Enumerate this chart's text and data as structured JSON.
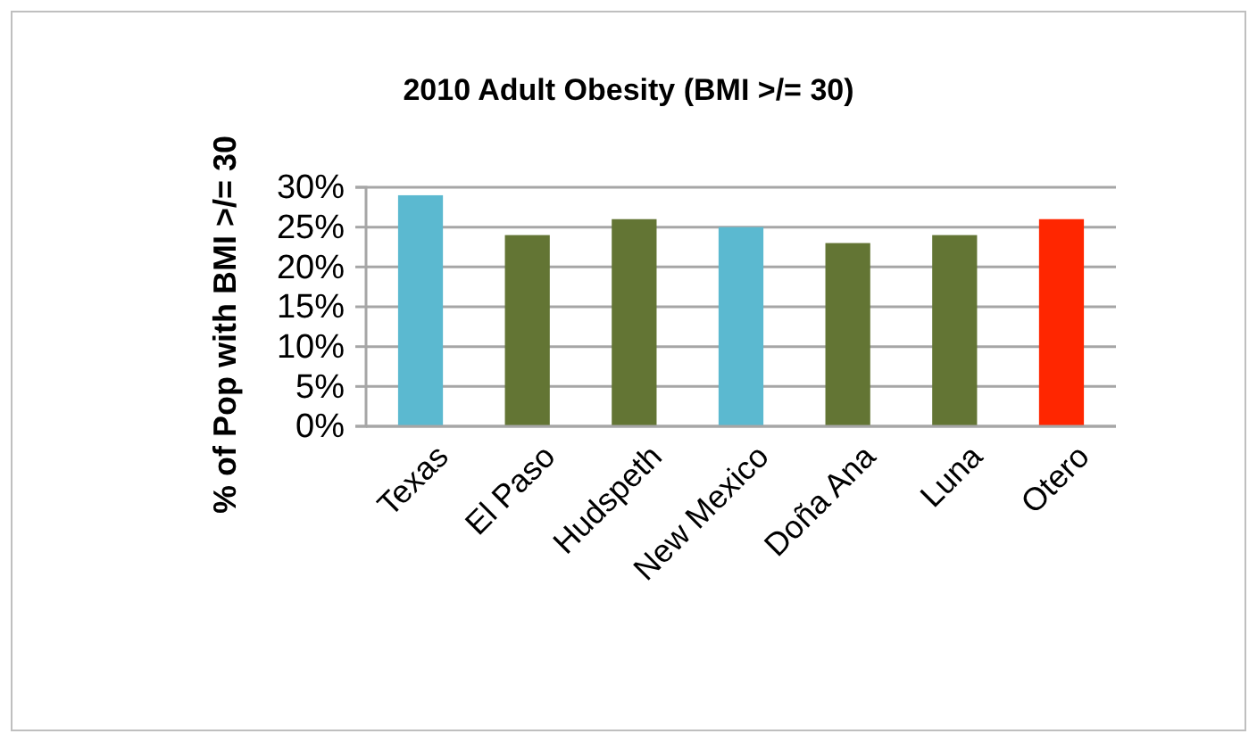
{
  "chart_data": {
    "type": "bar",
    "title": "2010 Adult Obesity (BMI >/= 30)",
    "ylabel": "% of Pop with BMI >/= 30",
    "categories": [
      "Texas",
      "El Paso",
      "Hudspeth",
      "New Mexico",
      "Doña Ana",
      "Luna",
      "Otero"
    ],
    "values": [
      29,
      24,
      26,
      25,
      23,
      24,
      26
    ],
    "colors": [
      "#5bb9d0",
      "#637534",
      "#637534",
      "#5bb9d0",
      "#637534",
      "#637534",
      "#ff2600"
    ],
    "ylim": [
      0,
      30
    ],
    "yticks": [
      {
        "value": 0,
        "label": "0%"
      },
      {
        "value": 5,
        "label": "5%"
      },
      {
        "value": 10,
        "label": "10%"
      },
      {
        "value": 15,
        "label": "15%"
      },
      {
        "value": 20,
        "label": "20%"
      },
      {
        "value": 25,
        "label": "25%"
      },
      {
        "value": 30,
        "label": "30%"
      }
    ],
    "grid": true
  }
}
